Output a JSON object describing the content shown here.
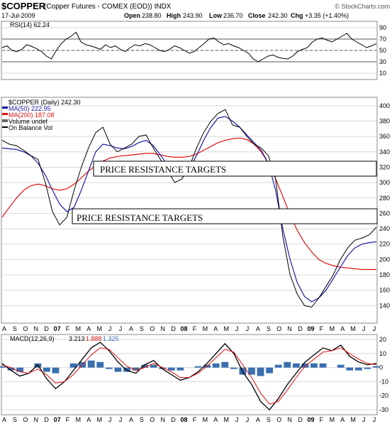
{
  "header": {
    "symbol": "$COPPER",
    "description": "(Copper Futures - COMEX (EOD)) INDX",
    "date": "17-Jul-2009",
    "open_label": "Open",
    "open": "238.80",
    "high_label": "High",
    "high": "243.90",
    "low_label": "Low",
    "low": "236.70",
    "close_label": "Close",
    "close": "242.30",
    "chg_label": "Chg",
    "chg": "+3.35 (+1.40%)",
    "watermark": "© StockCharts.com"
  },
  "colors": {
    "price": "#000000",
    "ma50": "#1a1aa8",
    "ma200": "#e01010",
    "macd": "#000000",
    "signal": "#e01010",
    "histogram": "#3a6fb0",
    "rsi_fill": "#2e8b57"
  },
  "chart_data": [
    {
      "type": "line",
      "pane": "rsi",
      "legend": "RSI(14) 62.24",
      "ylim": [
        0,
        100
      ],
      "ticks": [
        10,
        30,
        50,
        70,
        90
      ],
      "reference_lines": [
        30,
        50,
        70
      ],
      "series": [
        {
          "name": "RSI(14)",
          "values": [
            55,
            58,
            50,
            48,
            52,
            60,
            57,
            53,
            48,
            40,
            35,
            50,
            62,
            70,
            75,
            82,
            65,
            60,
            58,
            55,
            52,
            60,
            55,
            58,
            52,
            48,
            55,
            60,
            58,
            62,
            60,
            55,
            50,
            48,
            52,
            58,
            55,
            50,
            45,
            48,
            55,
            62,
            70,
            72,
            65,
            60,
            62,
            58,
            55,
            50,
            45,
            35,
            30,
            35,
            40,
            42,
            38,
            36,
            35,
            40,
            48,
            52,
            55,
            65,
            70,
            72,
            68,
            65,
            70,
            75,
            80,
            70,
            65,
            60,
            55,
            58,
            62
          ]
        }
      ]
    },
    {
      "type": "line",
      "pane": "price",
      "legend_items": [
        {
          "label": "$COPPER (Daily) 242.30"
        },
        {
          "label": "MA(50) 222.95"
        },
        {
          "label": "MA(200) 187.08"
        },
        {
          "label": "Volume undef"
        },
        {
          "label": "On Balance Vol"
        }
      ],
      "ylim": [
        120,
        410
      ],
      "ticks": [
        140,
        160,
        180,
        200,
        220,
        240,
        260,
        280,
        300,
        320,
        340,
        360,
        380,
        400
      ],
      "series": [
        {
          "name": "$COPPER",
          "values": [
            355,
            350,
            348,
            342,
            335,
            330,
            300,
            262,
            245,
            255,
            290,
            320,
            345,
            365,
            372,
            350,
            340,
            345,
            350,
            360,
            362,
            345,
            330,
            315,
            300,
            305,
            320,
            345,
            365,
            380,
            390,
            395,
            375,
            372,
            360,
            350,
            345,
            335,
            305,
            230,
            180,
            155,
            140,
            138,
            150,
            165,
            180,
            200,
            215,
            225,
            228,
            232,
            242
          ]
        },
        {
          "name": "MA(50)",
          "values": [
            345,
            344,
            343,
            340,
            335,
            325,
            310,
            290,
            272,
            262,
            268,
            290,
            315,
            340,
            350,
            348,
            345,
            344,
            347,
            352,
            355,
            348,
            336,
            322,
            312,
            310,
            318,
            335,
            355,
            372,
            384,
            386,
            380,
            372,
            362,
            352,
            342,
            325,
            290,
            240,
            200,
            170,
            152,
            145,
            150,
            160,
            175,
            190,
            205,
            215,
            220,
            222,
            223
          ]
        },
        {
          "name": "MA(200)",
          "values": [
            255,
            268,
            280,
            290,
            296,
            298,
            296,
            292,
            290,
            292,
            298,
            306,
            315,
            322,
            328,
            332,
            334,
            335,
            336,
            337,
            338,
            338,
            336,
            334,
            333,
            333,
            334,
            337,
            342,
            347,
            352,
            355,
            357,
            358,
            356,
            350,
            340,
            325,
            305,
            282,
            258,
            238,
            222,
            210,
            200,
            195,
            192,
            190,
            189,
            188,
            187,
            187,
            187
          ]
        }
      ]
    },
    {
      "type": "line",
      "pane": "macd",
      "legend": "MACD(12,26,9)",
      "legend_values": [
        "3.213",
        "1.888",
        "1.325"
      ],
      "ylim": [
        -33,
        23
      ],
      "ticks": [
        -30,
        -20,
        -10,
        0,
        10,
        20
      ],
      "series": [
        {
          "name": "MACD",
          "values": [
            3,
            -2,
            -6,
            -4,
            2,
            -8,
            -15,
            -10,
            -2,
            6,
            14,
            18,
            12,
            4,
            -2,
            -4,
            2,
            5,
            -1,
            -5,
            -9,
            -7,
            -3,
            3,
            10,
            17,
            10,
            -3,
            -12,
            -24,
            -30,
            -22,
            -12,
            -4,
            4,
            9,
            14,
            12,
            16,
            8,
            4,
            2,
            3
          ]
        },
        {
          "name": "Signal",
          "values": [
            2,
            0,
            -3,
            -4,
            -1,
            -5,
            -11,
            -10,
            -5,
            2,
            9,
            14,
            13,
            7,
            1,
            -2,
            0,
            3,
            0,
            -3,
            -7,
            -7,
            -4,
            1,
            7,
            13,
            11,
            2,
            -7,
            -18,
            -26,
            -24,
            -16,
            -7,
            1,
            6,
            11,
            12,
            14,
            10,
            6,
            3,
            2
          ]
        },
        {
          "name": "Histogram",
          "values": [
            1,
            -2,
            -3,
            0,
            3,
            -3,
            -4,
            0,
            3,
            4,
            5,
            4,
            -1,
            -3,
            -3,
            -2,
            2,
            2,
            -1,
            -2,
            -2,
            0,
            1,
            2,
            3,
            4,
            -1,
            -5,
            -5,
            -6,
            -4,
            2,
            4,
            3,
            3,
            3,
            3,
            0,
            2,
            -2,
            -2,
            -1,
            1
          ]
        }
      ]
    },
    {
      "type": "table",
      "pane": "x-axis",
      "month_labels": [
        "A",
        "S",
        "O",
        "N",
        "D",
        "07",
        "F",
        "M",
        "A",
        "M",
        "J",
        "J",
        "A",
        "S",
        "O",
        "N",
        "D",
        "08",
        "F",
        "M",
        "A",
        "M",
        "J",
        "J",
        "A",
        "S",
        "O",
        "N",
        "D",
        "09",
        "F",
        "M",
        "A",
        "M",
        "J",
        "J"
      ],
      "bold_labels": [
        "07",
        "08",
        "09"
      ]
    }
  ],
  "annotations": [
    {
      "text": "PRICE RESISTANCE TARGETS"
    },
    {
      "text": "PRICE RESISTANCE TARGETS"
    }
  ]
}
